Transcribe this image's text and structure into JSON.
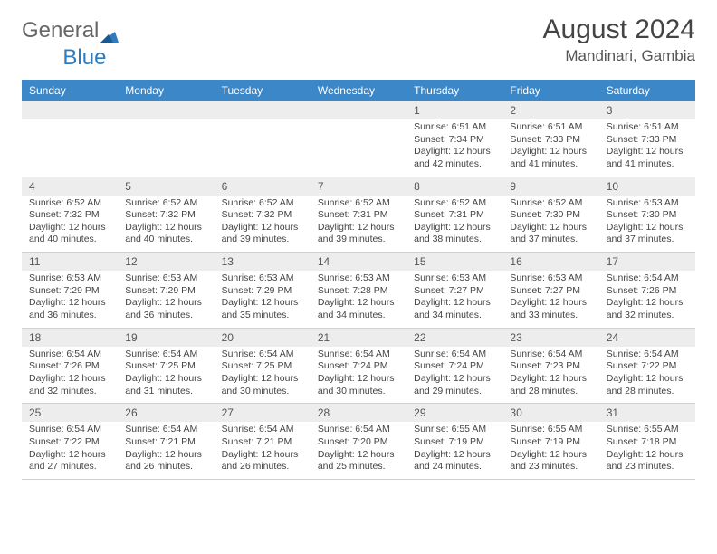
{
  "brand": {
    "part1": "General",
    "part2": "Blue"
  },
  "title": "August 2024",
  "location": "Mandinari, Gambia",
  "dayNames": [
    "Sunday",
    "Monday",
    "Tuesday",
    "Wednesday",
    "Thursday",
    "Friday",
    "Saturday"
  ],
  "colors": {
    "headerBar": "#3b87c8",
    "dayNumBg": "#ededed",
    "text": "#444",
    "brandBlue": "#2d7cc0"
  },
  "weeks": [
    [
      {
        "n": "",
        "lines": []
      },
      {
        "n": "",
        "lines": []
      },
      {
        "n": "",
        "lines": []
      },
      {
        "n": "",
        "lines": []
      },
      {
        "n": "1",
        "lines": [
          "Sunrise: 6:51 AM",
          "Sunset: 7:34 PM",
          "Daylight: 12 hours",
          "and 42 minutes."
        ]
      },
      {
        "n": "2",
        "lines": [
          "Sunrise: 6:51 AM",
          "Sunset: 7:33 PM",
          "Daylight: 12 hours",
          "and 41 minutes."
        ]
      },
      {
        "n": "3",
        "lines": [
          "Sunrise: 6:51 AM",
          "Sunset: 7:33 PM",
          "Daylight: 12 hours",
          "and 41 minutes."
        ]
      }
    ],
    [
      {
        "n": "4",
        "lines": [
          "Sunrise: 6:52 AM",
          "Sunset: 7:32 PM",
          "Daylight: 12 hours",
          "and 40 minutes."
        ]
      },
      {
        "n": "5",
        "lines": [
          "Sunrise: 6:52 AM",
          "Sunset: 7:32 PM",
          "Daylight: 12 hours",
          "and 40 minutes."
        ]
      },
      {
        "n": "6",
        "lines": [
          "Sunrise: 6:52 AM",
          "Sunset: 7:32 PM",
          "Daylight: 12 hours",
          "and 39 minutes."
        ]
      },
      {
        "n": "7",
        "lines": [
          "Sunrise: 6:52 AM",
          "Sunset: 7:31 PM",
          "Daylight: 12 hours",
          "and 39 minutes."
        ]
      },
      {
        "n": "8",
        "lines": [
          "Sunrise: 6:52 AM",
          "Sunset: 7:31 PM",
          "Daylight: 12 hours",
          "and 38 minutes."
        ]
      },
      {
        "n": "9",
        "lines": [
          "Sunrise: 6:52 AM",
          "Sunset: 7:30 PM",
          "Daylight: 12 hours",
          "and 37 minutes."
        ]
      },
      {
        "n": "10",
        "lines": [
          "Sunrise: 6:53 AM",
          "Sunset: 7:30 PM",
          "Daylight: 12 hours",
          "and 37 minutes."
        ]
      }
    ],
    [
      {
        "n": "11",
        "lines": [
          "Sunrise: 6:53 AM",
          "Sunset: 7:29 PM",
          "Daylight: 12 hours",
          "and 36 minutes."
        ]
      },
      {
        "n": "12",
        "lines": [
          "Sunrise: 6:53 AM",
          "Sunset: 7:29 PM",
          "Daylight: 12 hours",
          "and 36 minutes."
        ]
      },
      {
        "n": "13",
        "lines": [
          "Sunrise: 6:53 AM",
          "Sunset: 7:29 PM",
          "Daylight: 12 hours",
          "and 35 minutes."
        ]
      },
      {
        "n": "14",
        "lines": [
          "Sunrise: 6:53 AM",
          "Sunset: 7:28 PM",
          "Daylight: 12 hours",
          "and 34 minutes."
        ]
      },
      {
        "n": "15",
        "lines": [
          "Sunrise: 6:53 AM",
          "Sunset: 7:27 PM",
          "Daylight: 12 hours",
          "and 34 minutes."
        ]
      },
      {
        "n": "16",
        "lines": [
          "Sunrise: 6:53 AM",
          "Sunset: 7:27 PM",
          "Daylight: 12 hours",
          "and 33 minutes."
        ]
      },
      {
        "n": "17",
        "lines": [
          "Sunrise: 6:54 AM",
          "Sunset: 7:26 PM",
          "Daylight: 12 hours",
          "and 32 minutes."
        ]
      }
    ],
    [
      {
        "n": "18",
        "lines": [
          "Sunrise: 6:54 AM",
          "Sunset: 7:26 PM",
          "Daylight: 12 hours",
          "and 32 minutes."
        ]
      },
      {
        "n": "19",
        "lines": [
          "Sunrise: 6:54 AM",
          "Sunset: 7:25 PM",
          "Daylight: 12 hours",
          "and 31 minutes."
        ]
      },
      {
        "n": "20",
        "lines": [
          "Sunrise: 6:54 AM",
          "Sunset: 7:25 PM",
          "Daylight: 12 hours",
          "and 30 minutes."
        ]
      },
      {
        "n": "21",
        "lines": [
          "Sunrise: 6:54 AM",
          "Sunset: 7:24 PM",
          "Daylight: 12 hours",
          "and 30 minutes."
        ]
      },
      {
        "n": "22",
        "lines": [
          "Sunrise: 6:54 AM",
          "Sunset: 7:24 PM",
          "Daylight: 12 hours",
          "and 29 minutes."
        ]
      },
      {
        "n": "23",
        "lines": [
          "Sunrise: 6:54 AM",
          "Sunset: 7:23 PM",
          "Daylight: 12 hours",
          "and 28 minutes."
        ]
      },
      {
        "n": "24",
        "lines": [
          "Sunrise: 6:54 AM",
          "Sunset: 7:22 PM",
          "Daylight: 12 hours",
          "and 28 minutes."
        ]
      }
    ],
    [
      {
        "n": "25",
        "lines": [
          "Sunrise: 6:54 AM",
          "Sunset: 7:22 PM",
          "Daylight: 12 hours",
          "and 27 minutes."
        ]
      },
      {
        "n": "26",
        "lines": [
          "Sunrise: 6:54 AM",
          "Sunset: 7:21 PM",
          "Daylight: 12 hours",
          "and 26 minutes."
        ]
      },
      {
        "n": "27",
        "lines": [
          "Sunrise: 6:54 AM",
          "Sunset: 7:21 PM",
          "Daylight: 12 hours",
          "and 26 minutes."
        ]
      },
      {
        "n": "28",
        "lines": [
          "Sunrise: 6:54 AM",
          "Sunset: 7:20 PM",
          "Daylight: 12 hours",
          "and 25 minutes."
        ]
      },
      {
        "n": "29",
        "lines": [
          "Sunrise: 6:55 AM",
          "Sunset: 7:19 PM",
          "Daylight: 12 hours",
          "and 24 minutes."
        ]
      },
      {
        "n": "30",
        "lines": [
          "Sunrise: 6:55 AM",
          "Sunset: 7:19 PM",
          "Daylight: 12 hours",
          "and 23 minutes."
        ]
      },
      {
        "n": "31",
        "lines": [
          "Sunrise: 6:55 AM",
          "Sunset: 7:18 PM",
          "Daylight: 12 hours",
          "and 23 minutes."
        ]
      }
    ]
  ]
}
